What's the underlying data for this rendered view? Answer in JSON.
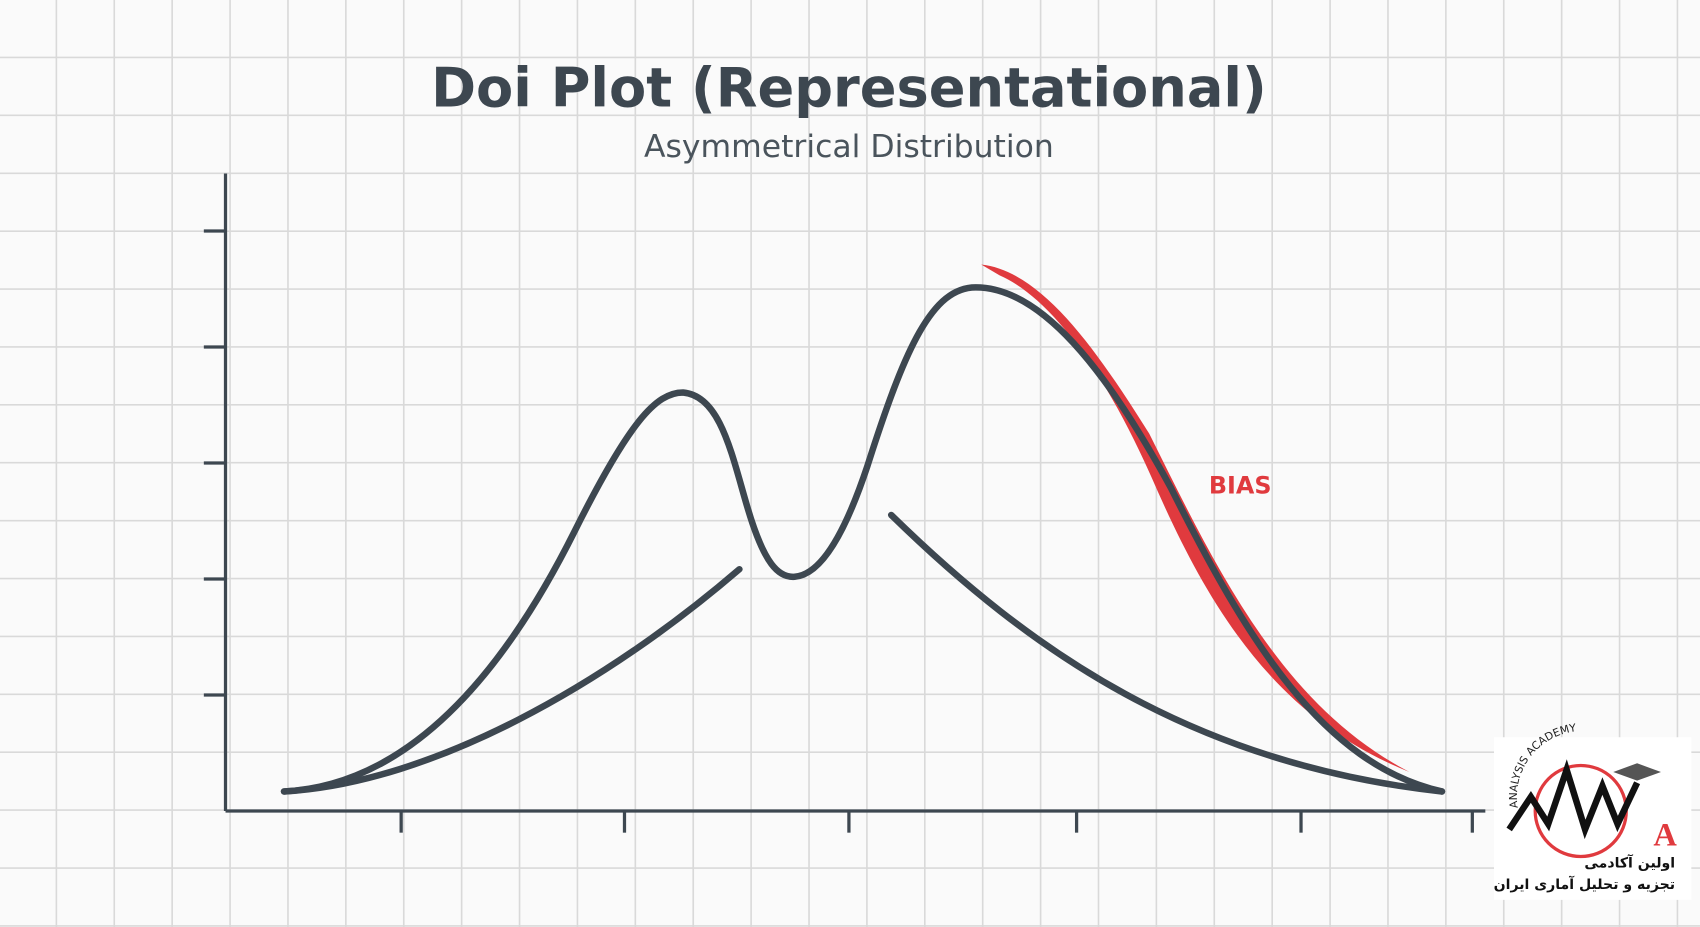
{
  "header": {
    "title": "Doi Plot (Representational)",
    "subtitle": "Asymmetrical Distribution"
  },
  "annotation": {
    "bias": "BIAS"
  },
  "logo": {
    "arc_text": "ANALYSIS ACADEMY",
    "line1": "اولین آکادمی",
    "line2": "تجزیه و تحلیل آماری ایران"
  }
}
